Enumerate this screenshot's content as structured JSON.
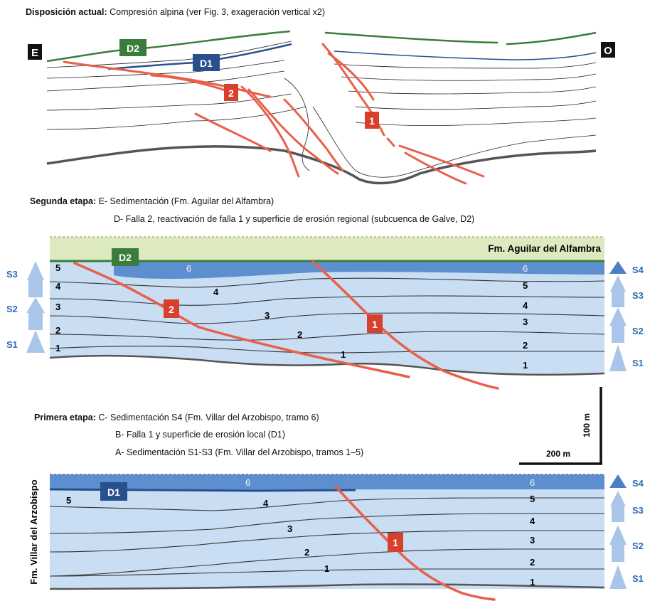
{
  "panels": {
    "top": {
      "heading": "Disposición actual:",
      "text": "Compresión alpina (ver Fig. 3, exageración vertical x2)",
      "side_left": "E",
      "side_right": "O",
      "labels": {
        "d2": "D2",
        "d1": "D1",
        "fault2": "2",
        "fault1": "1"
      }
    },
    "middle": {
      "heading": "Segunda etapa:",
      "lines": [
        "E- Sedimentación (Fm. Aguilar del Alfambra)",
        "D- Falla 2, reactivación de falla 1 y superficie de erosión regional (subcuenca de Galve, D2)"
      ],
      "formation": "Fm. Aguilar del Alfambra",
      "d2": "D2",
      "fault2": "2",
      "fault1": "1",
      "units_left": [
        "5",
        "4",
        "3",
        "2",
        "1"
      ],
      "units_center": [
        "6",
        "4",
        "3",
        "2",
        "1"
      ],
      "units_right": [
        "6",
        "5",
        "4",
        "3",
        "2",
        "1"
      ],
      "seq_left": [
        "S3",
        "S2",
        "S1"
      ],
      "seq_right": [
        "S4",
        "S3",
        "S2",
        "S1"
      ]
    },
    "bottom": {
      "heading": "Primera etapa:",
      "lines": [
        "C- Sedimentación S4 (Fm. Villar del Arzobispo, tramo 6)",
        "B- Falla 1 y superficie de erosión local (D1)",
        "A- Sedimentación S1-S3 (Fm. Villar del Arzobispo, tramos 1–5)"
      ],
      "formation": "Fm. Villar del Arzobispo",
      "d1": "D1",
      "fault1": "1",
      "units_center": [
        "6",
        "5",
        "4",
        "3",
        "2",
        "1"
      ],
      "units_right": [
        "6",
        "5",
        "4",
        "3",
        "2",
        "1"
      ],
      "seq_right": [
        "S4",
        "S3",
        "S2",
        "S1"
      ]
    }
  },
  "scale": {
    "vertical": "100 m",
    "horizontal": "200 m"
  },
  "colors": {
    "fault": "#e8604a",
    "fault_label": "#d8402e",
    "d2": "#3a7d3a",
    "d1": "#27508c",
    "layer_bg": "#c9ddf3",
    "unit6": "#5d8fd0",
    "aguilar": "#dde9bf",
    "sequence": "#a9c6ea"
  }
}
